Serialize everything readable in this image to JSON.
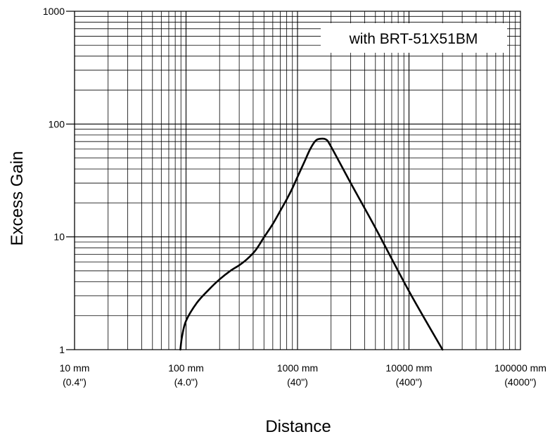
{
  "chart_data": {
    "type": "line",
    "x_scale": "log",
    "y_scale": "log",
    "xlabel": "Distance",
    "ylabel": "Excess Gain",
    "xlim": [
      10,
      100000
    ],
    "ylim": [
      1,
      1000
    ],
    "grid": true,
    "legend_position": "top-right",
    "x_ticks": [
      {
        "value": 10,
        "label": "10 mm",
        "sublabel": "(0.4\")"
      },
      {
        "value": 100,
        "label": "100 mm",
        "sublabel": "(4.0\")"
      },
      {
        "value": 1000,
        "label": "1000 mm",
        "sublabel": "(40\")"
      },
      {
        "value": 10000,
        "label": "10000 mm",
        "sublabel": "(400\")"
      },
      {
        "value": 100000,
        "label": "100000 mm",
        "sublabel": "(4000\")"
      }
    ],
    "y_ticks": [
      {
        "value": 1,
        "label": "1"
      },
      {
        "value": 10,
        "label": "10"
      },
      {
        "value": 100,
        "label": "100"
      },
      {
        "value": 1000,
        "label": "1000"
      }
    ],
    "series": [
      {
        "name": "with BRT-51X51BM",
        "color": "#000000",
        "x": [
          89,
          92,
          100,
          125,
          160,
          200,
          250,
          300,
          350,
          420,
          500,
          600,
          700,
          800,
          900,
          1000,
          1150,
          1300,
          1450,
          1600,
          1800,
          2000,
          3000,
          5000,
          10000,
          20000
        ],
        "y": [
          1.0,
          1.3,
          1.8,
          2.6,
          3.4,
          4.2,
          5.0,
          5.6,
          6.3,
          7.6,
          9.9,
          13.0,
          17.0,
          21.5,
          27.0,
          34.0,
          46.0,
          60.0,
          71.0,
          74.0,
          73.0,
          63.0,
          30.0,
          12.0,
          3.3,
          1.0
        ]
      }
    ]
  }
}
